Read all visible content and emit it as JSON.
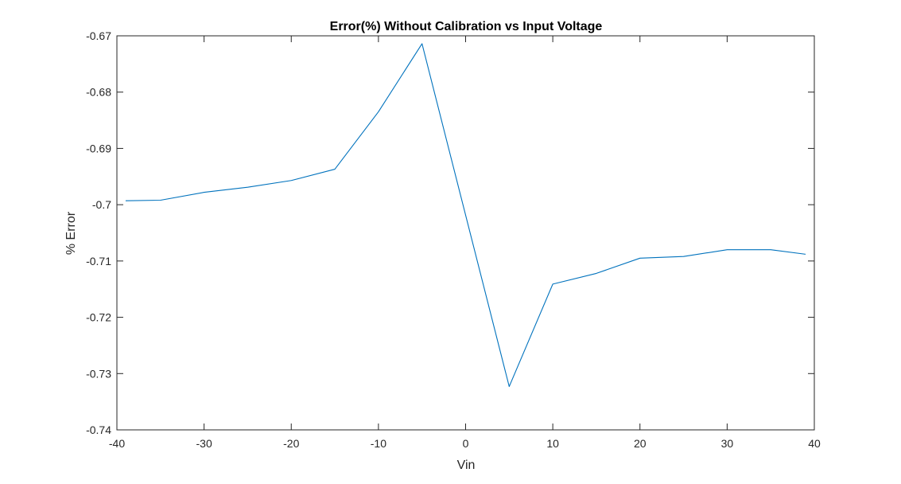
{
  "chart_data": {
    "type": "line",
    "title": "Error(%) Without Calibration vs Input Voltage",
    "xlabel": "Vin",
    "ylabel": "% Error",
    "xlim": [
      -40,
      40
    ],
    "ylim": [
      -0.74,
      -0.67
    ],
    "x_ticks": [
      -40,
      -30,
      -20,
      -10,
      0,
      10,
      20,
      30,
      40
    ],
    "x_tick_labels": [
      "-40",
      "-30",
      "-20",
      "-10",
      "0",
      "10",
      "20",
      "30",
      "40"
    ],
    "y_ticks": [
      -0.74,
      -0.73,
      -0.72,
      -0.71,
      -0.7,
      -0.69,
      -0.68,
      -0.67
    ],
    "y_tick_labels": [
      "-0.74",
      "-0.73",
      "-0.72",
      "-0.71",
      "-0.7",
      "-0.69",
      "-0.68",
      "-0.67"
    ],
    "grid": false,
    "series": [
      {
        "color": "#0072bd",
        "x": [
          -39,
          -35,
          -30,
          -25,
          -20,
          -15,
          -10,
          -5,
          5,
          10,
          15,
          20,
          25,
          30,
          35,
          39
        ],
        "y": [
          -0.6993,
          -0.6992,
          -0.6978,
          -0.6969,
          -0.6957,
          -0.6937,
          -0.6835,
          -0.6714,
          -0.7323,
          -0.7141,
          -0.7122,
          -0.7095,
          -0.7092,
          -0.708,
          -0.708,
          -0.7088
        ]
      }
    ]
  }
}
